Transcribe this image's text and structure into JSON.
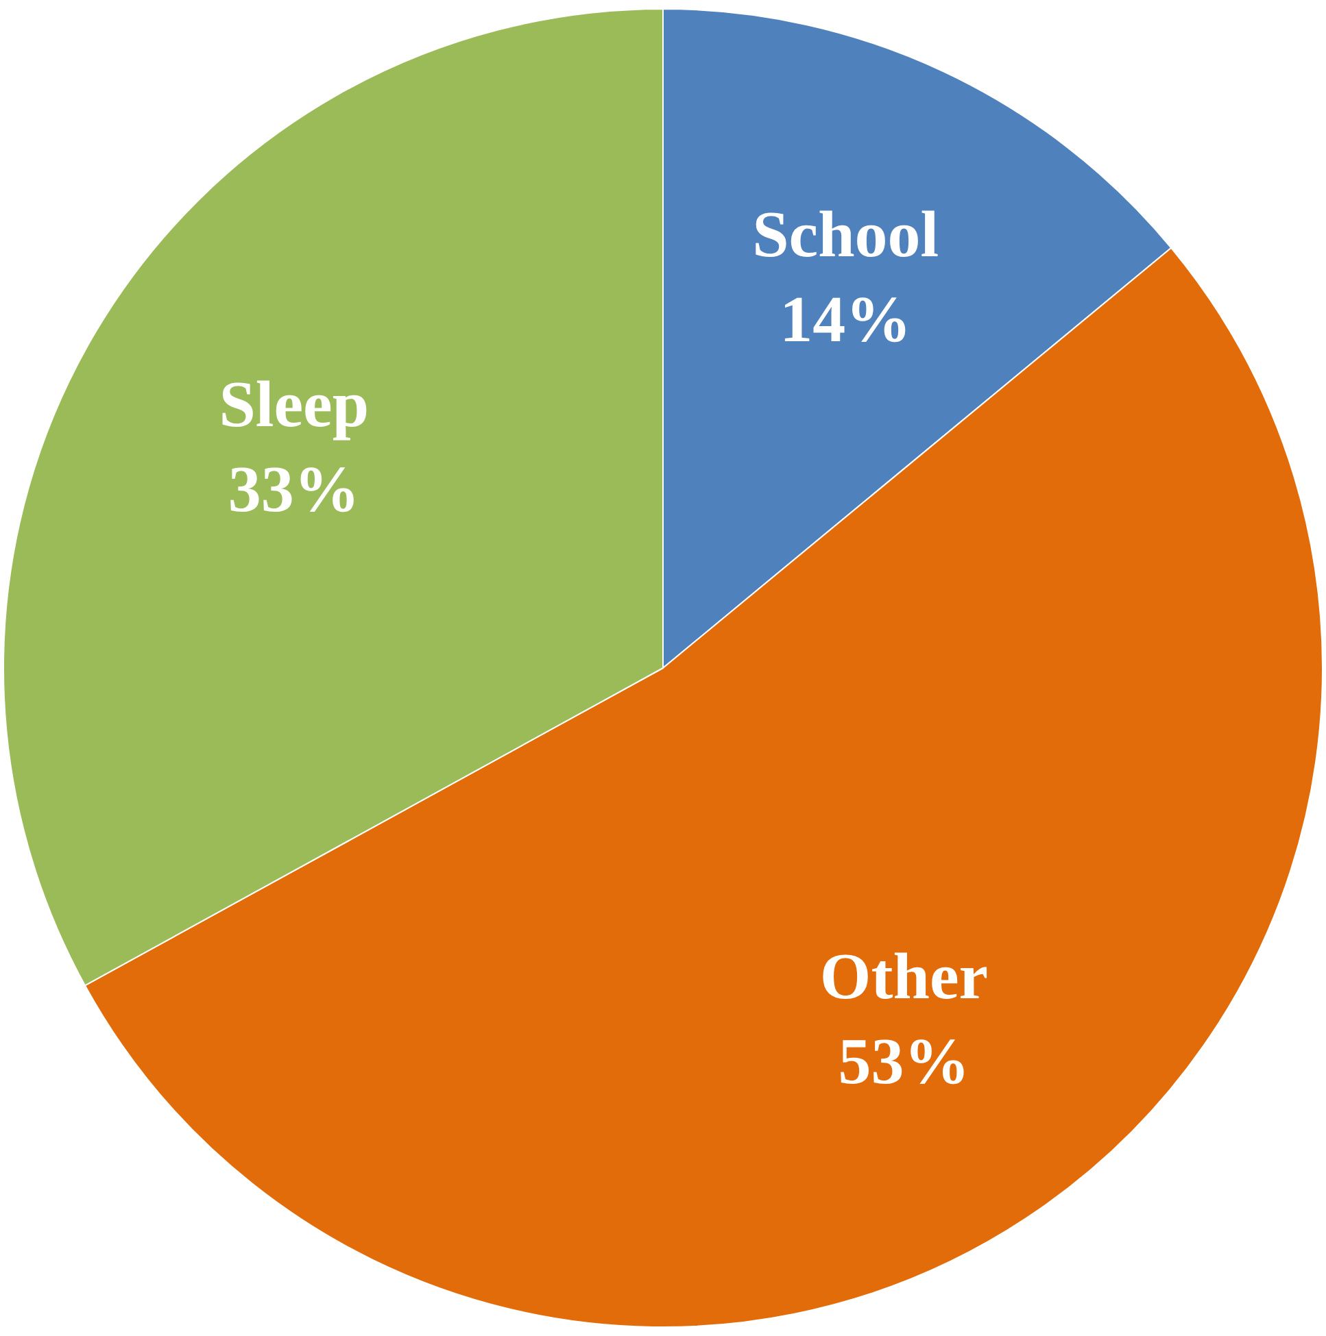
{
  "chart_data": {
    "type": "pie",
    "categories": [
      "School",
      "Other",
      "Sleep"
    ],
    "values": [
      14,
      53,
      33
    ],
    "colors": [
      "#4f81bd",
      "#e36c0a",
      "#9bbb59"
    ],
    "value_labels": [
      "14%",
      "53%",
      "33%"
    ],
    "legend": false
  }
}
